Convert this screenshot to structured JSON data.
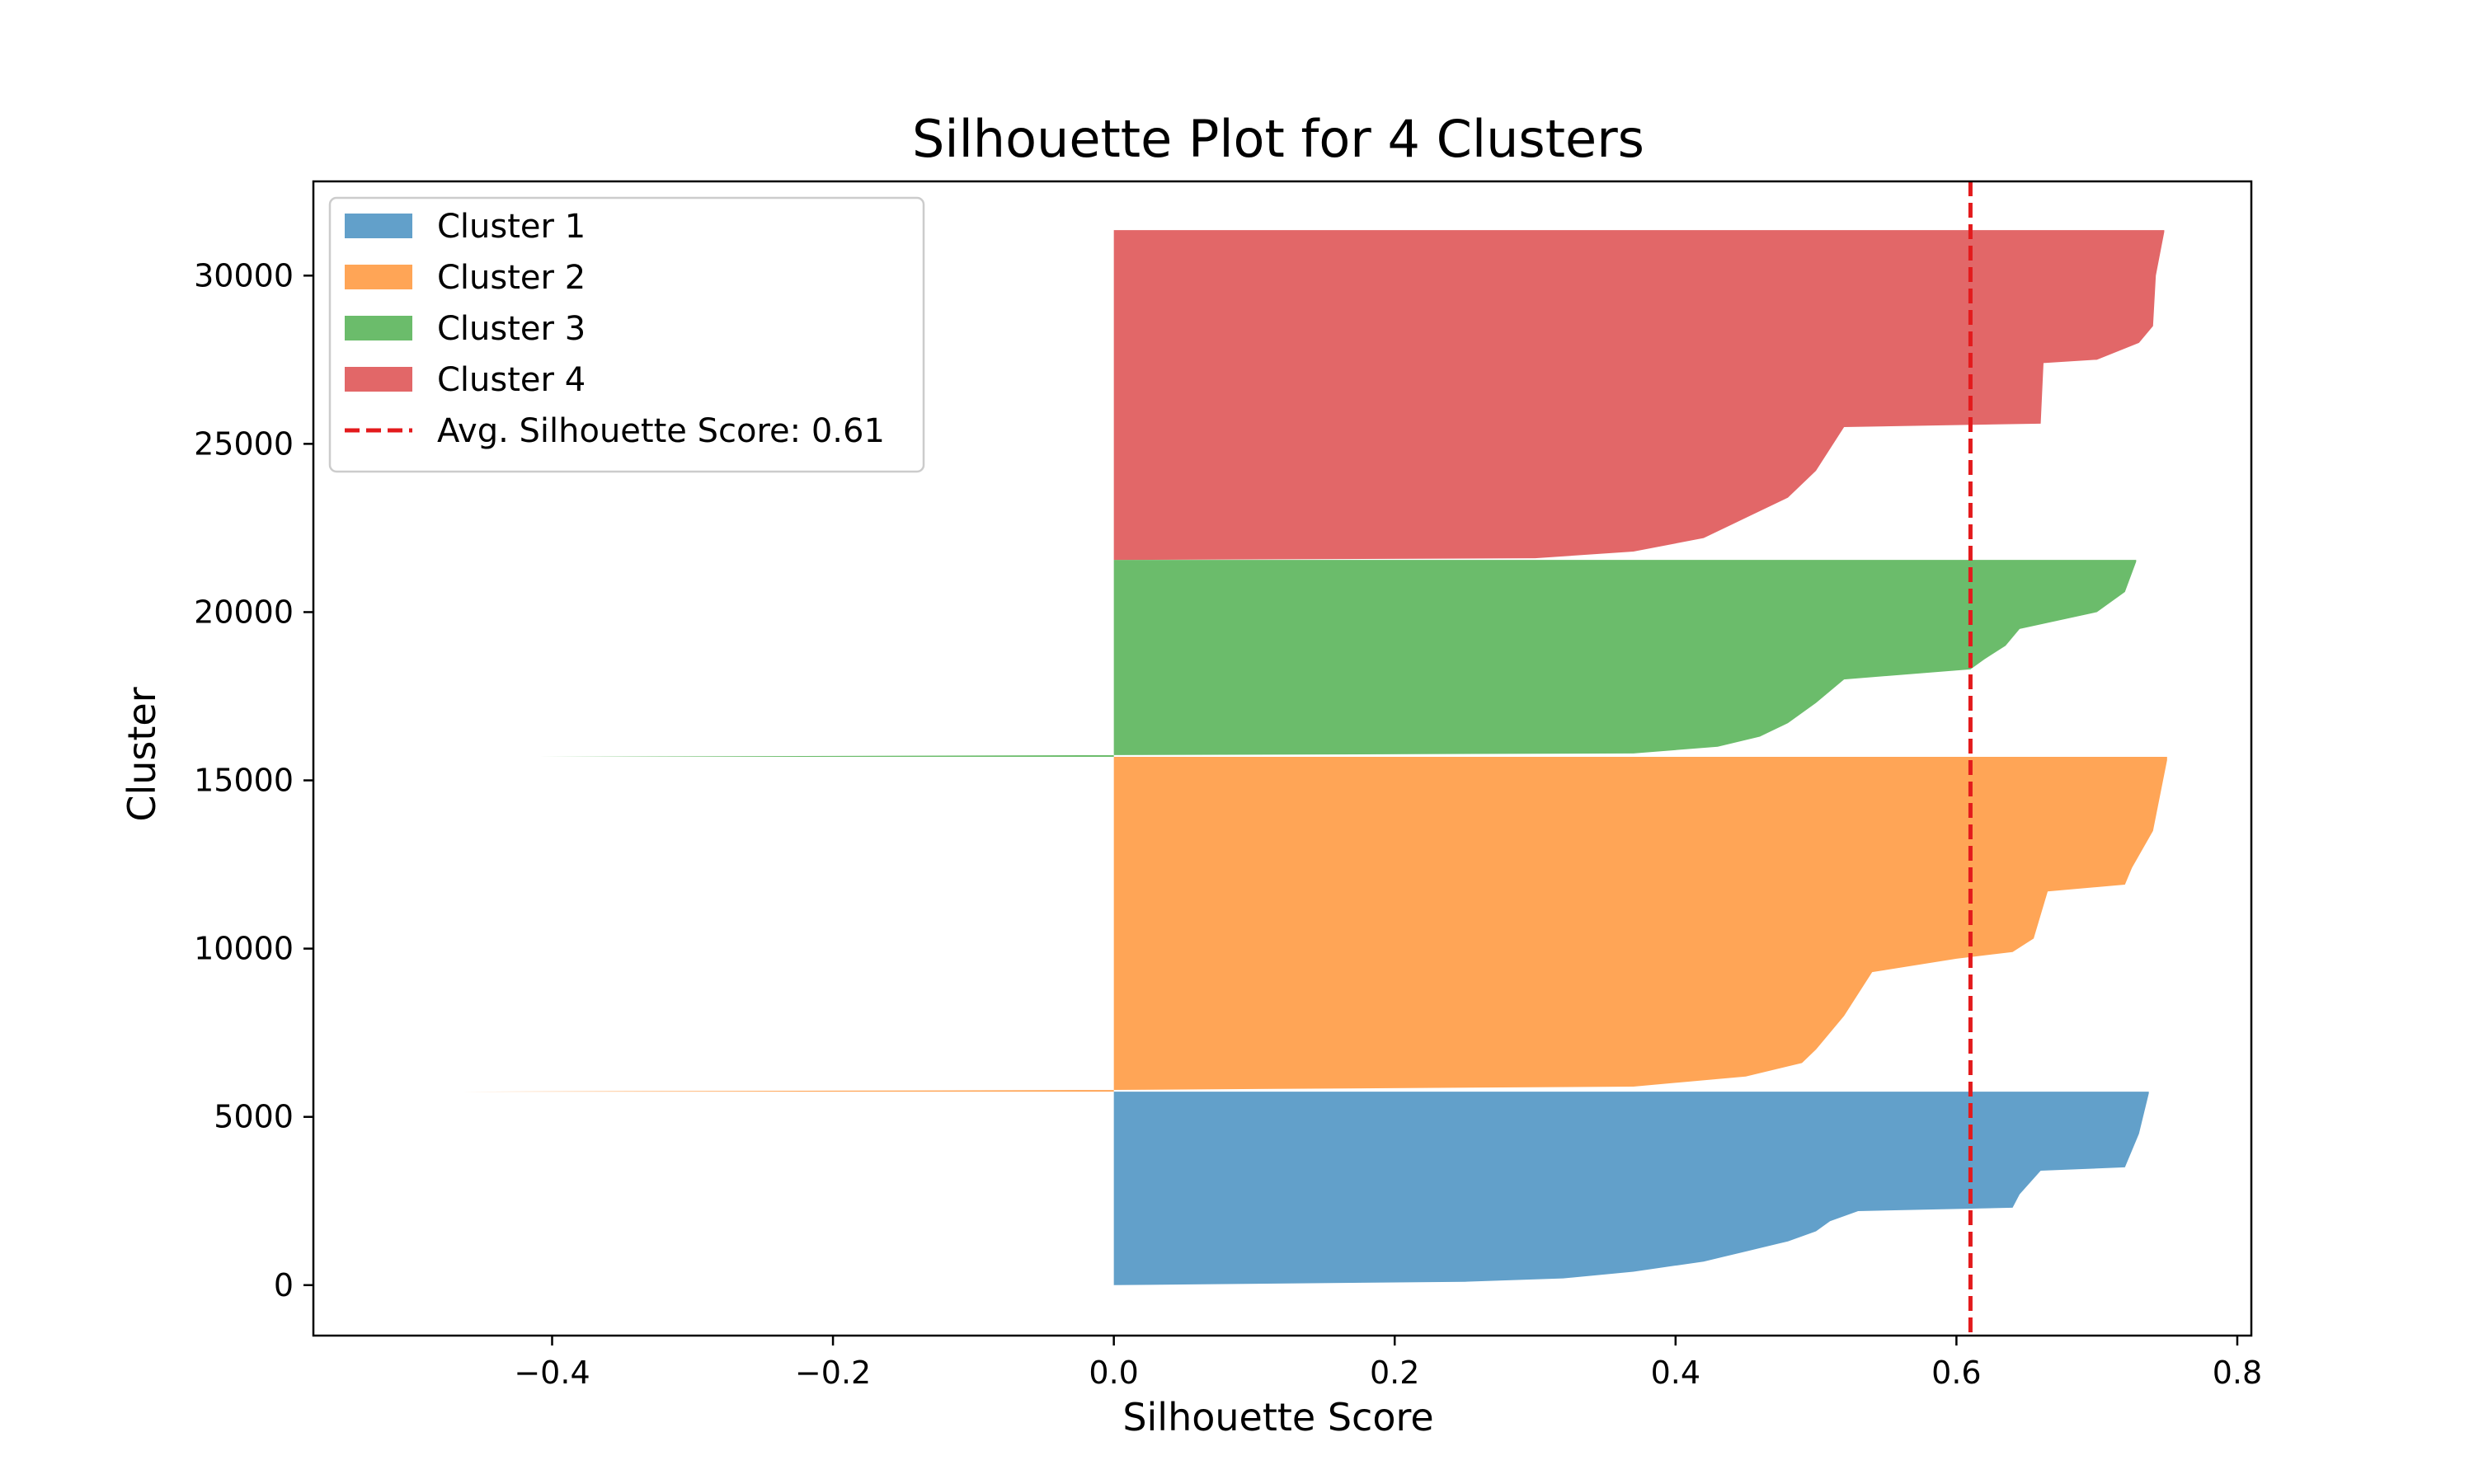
{
  "chart_data": {
    "type": "area",
    "title": "Silhouette Plot for 4 Clusters",
    "xlabel": "Silhouette Score",
    "ylabel": "Cluster",
    "xlim": [
      -0.57,
      0.81
    ],
    "ylim": [
      -1500,
      32800
    ],
    "xticks": [
      {
        "value": -0.4,
        "label": "−0.4"
      },
      {
        "value": -0.2,
        "label": "−0.2"
      },
      {
        "value": 0.0,
        "label": "0.0"
      },
      {
        "value": 0.2,
        "label": "0.2"
      },
      {
        "value": 0.4,
        "label": "0.4"
      },
      {
        "value": 0.6,
        "label": "0.6"
      },
      {
        "value": 0.8,
        "label": "0.8"
      }
    ],
    "yticks": [
      {
        "value": 0,
        "label": "0"
      },
      {
        "value": 5000,
        "label": "5000"
      },
      {
        "value": 10000,
        "label": "10000"
      },
      {
        "value": 15000,
        "label": "15000"
      },
      {
        "value": 20000,
        "label": "20000"
      },
      {
        "value": 25000,
        "label": "25000"
      },
      {
        "value": 30000,
        "label": "30000"
      }
    ],
    "legend_position": "top-left",
    "grid": false,
    "average_line": {
      "label": "Avg. Silhouette Score: 0.61",
      "value": 0.61,
      "color": "#e31a1c",
      "style": "dashed"
    },
    "series": [
      {
        "name": "Cluster 1",
        "color": "#1f77b4",
        "y_start": 0,
        "y_end": 5750,
        "profile": [
          [
            0,
            0.0
          ],
          [
            100,
            0.25
          ],
          [
            200,
            0.32
          ],
          [
            400,
            0.37
          ],
          [
            700,
            0.42
          ],
          [
            1000,
            0.45
          ],
          [
            1300,
            0.48
          ],
          [
            1600,
            0.5
          ],
          [
            1900,
            0.51
          ],
          [
            2200,
            0.53
          ],
          [
            2300,
            0.64
          ],
          [
            2700,
            0.645
          ],
          [
            3400,
            0.66
          ],
          [
            3500,
            0.72
          ],
          [
            4500,
            0.73
          ],
          [
            5700,
            0.737
          ]
        ]
      },
      {
        "name": "Cluster 2",
        "color": "#ff7f0e",
        "y_start": 5750,
        "y_end": 15700,
        "profile": [
          [
            5750,
            -0.465
          ],
          [
            5800,
            0.0
          ],
          [
            5900,
            0.37
          ],
          [
            6200,
            0.45
          ],
          [
            6600,
            0.49
          ],
          [
            7000,
            0.5
          ],
          [
            8000,
            0.52
          ],
          [
            9300,
            0.54
          ],
          [
            9700,
            0.6
          ],
          [
            9900,
            0.64
          ],
          [
            10300,
            0.655
          ],
          [
            11700,
            0.665
          ],
          [
            11900,
            0.72
          ],
          [
            12400,
            0.725
          ],
          [
            13500,
            0.74
          ],
          [
            15600,
            0.75
          ]
        ]
      },
      {
        "name": "Cluster 3",
        "color": "#2ca02c",
        "y_start": 15700,
        "y_end": 21550,
        "profile": [
          [
            15700,
            -0.41
          ],
          [
            15750,
            0.0
          ],
          [
            15800,
            0.37
          ],
          [
            16000,
            0.43
          ],
          [
            16300,
            0.46
          ],
          [
            16700,
            0.48
          ],
          [
            17300,
            0.5
          ],
          [
            18000,
            0.52
          ],
          [
            18300,
            0.61
          ],
          [
            18600,
            0.62
          ],
          [
            19000,
            0.635
          ],
          [
            19500,
            0.645
          ],
          [
            20000,
            0.7
          ],
          [
            20600,
            0.72
          ],
          [
            21500,
            0.728
          ]
        ]
      },
      {
        "name": "Cluster 4",
        "color": "#d62728",
        "y_start": 21550,
        "y_end": 31350,
        "profile": [
          [
            21550,
            0.0
          ],
          [
            21600,
            0.3
          ],
          [
            21800,
            0.37
          ],
          [
            22200,
            0.42
          ],
          [
            22800,
            0.45
          ],
          [
            23400,
            0.48
          ],
          [
            24200,
            0.5
          ],
          [
            25500,
            0.52
          ],
          [
            25600,
            0.66
          ],
          [
            27400,
            0.662
          ],
          [
            27500,
            0.7
          ],
          [
            28000,
            0.73
          ],
          [
            28500,
            0.74
          ],
          [
            30000,
            0.742
          ],
          [
            31300,
            0.748
          ]
        ]
      }
    ]
  }
}
